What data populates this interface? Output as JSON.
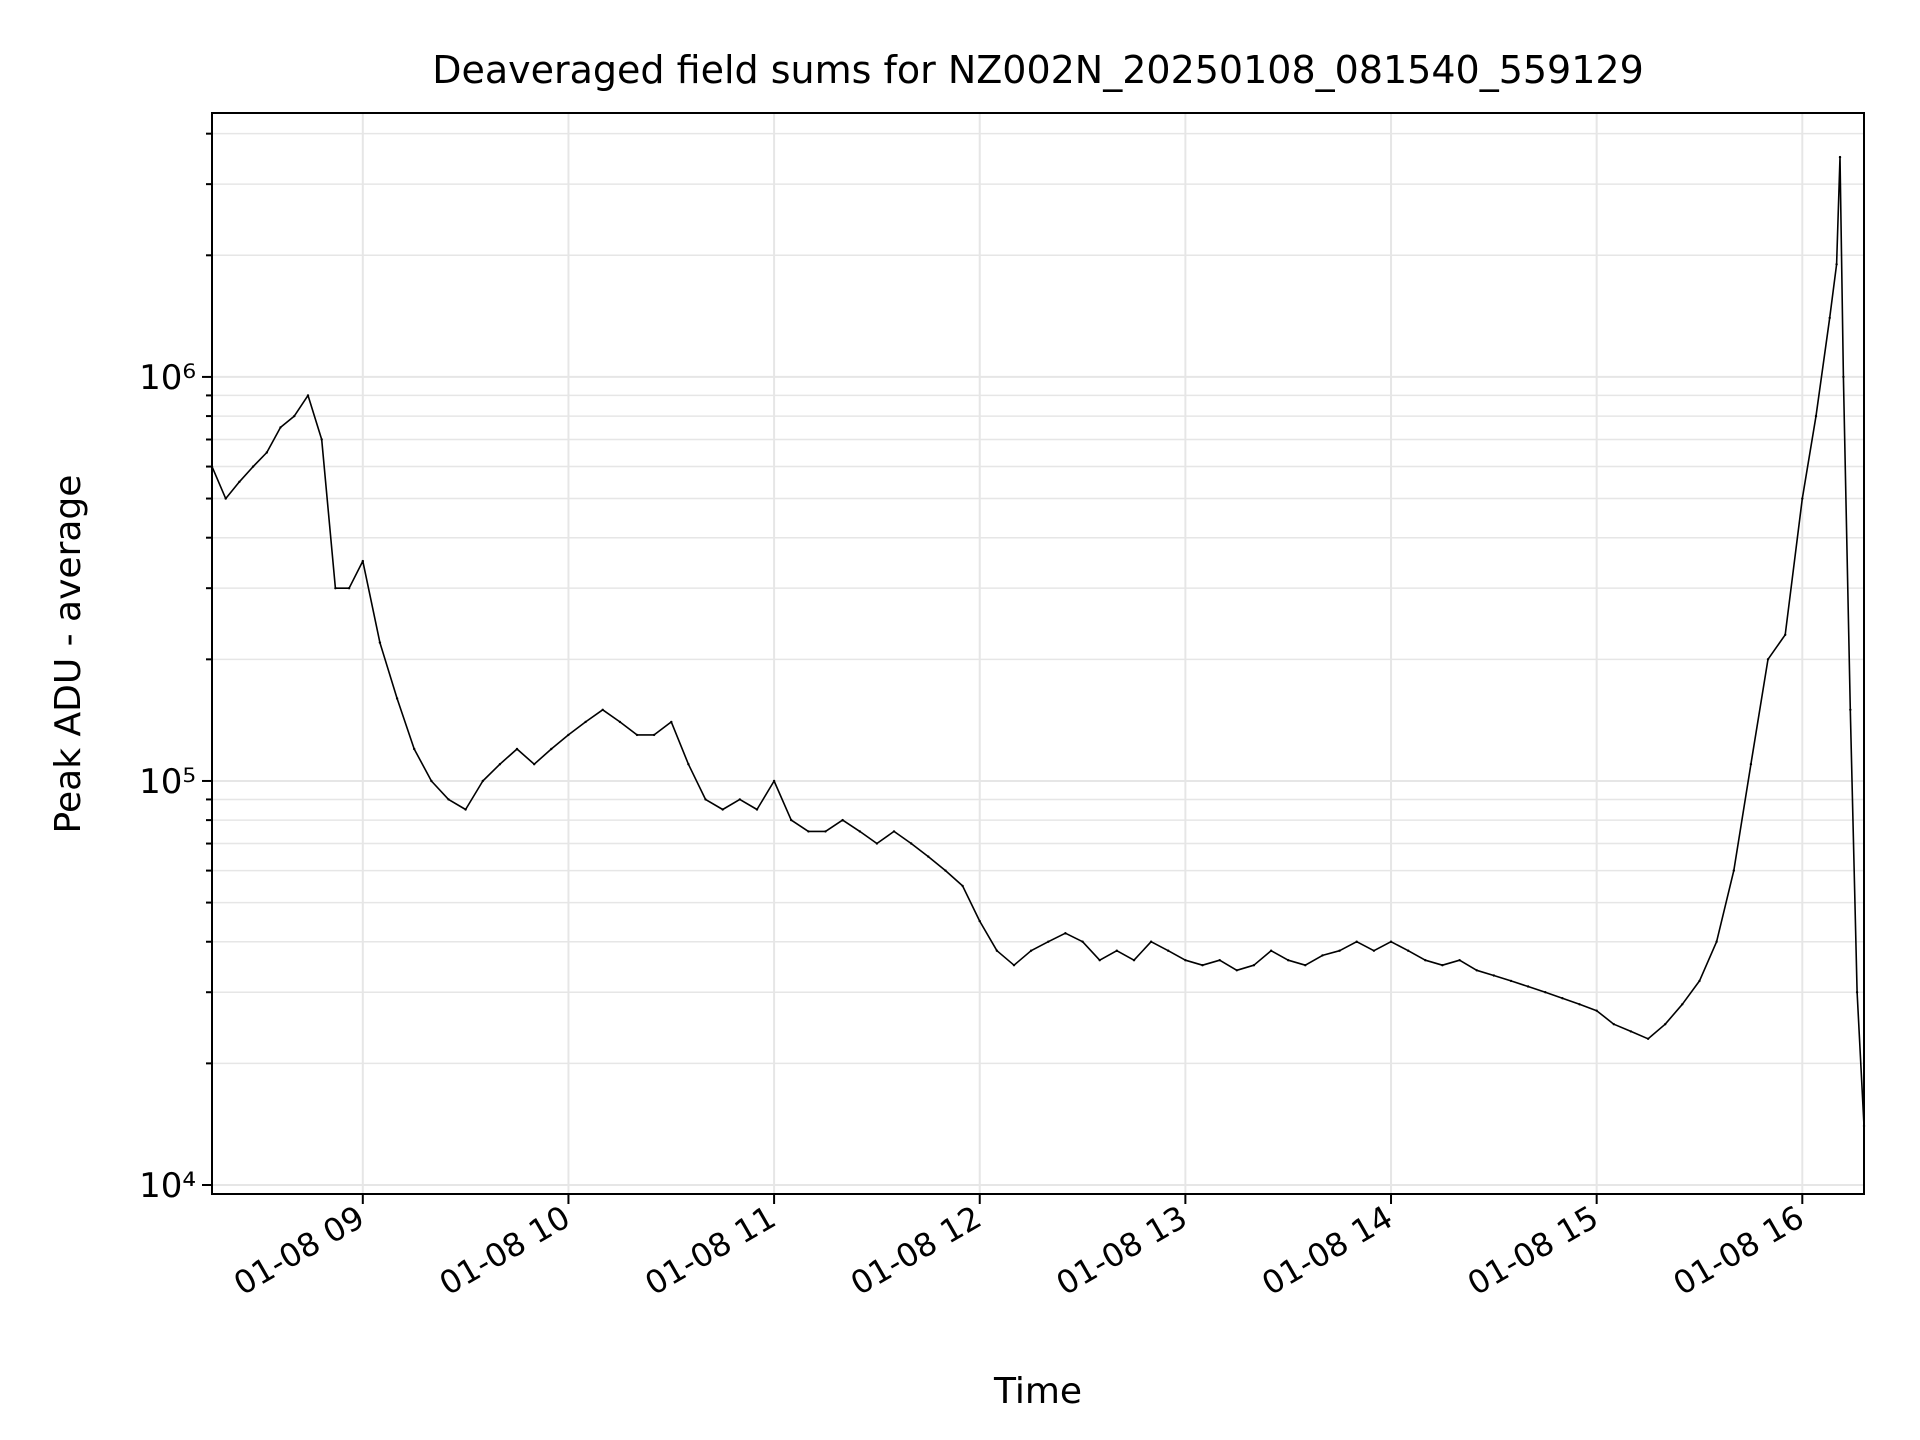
{
  "colors": {
    "line": "#000000",
    "grid": "#e6e6e6",
    "axes": "#000000",
    "background": "#ffffff"
  },
  "chart_data": {
    "type": "line",
    "title": "Deaveraged field sums for NZ002N_20250108_081540_559129",
    "xlabel": "Time",
    "ylabel": "Peak ADU - average",
    "yscale": "log",
    "ylim": [
      9500,
      4500000
    ],
    "xlim": [
      "2025-01-08T08:16:00",
      "2025-01-08T16:18:00"
    ],
    "xticks": [
      {
        "time": "2025-01-08T09:00:00",
        "label": "01-08 09"
      },
      {
        "time": "2025-01-08T10:00:00",
        "label": "01-08 10"
      },
      {
        "time": "2025-01-08T11:00:00",
        "label": "01-08 11"
      },
      {
        "time": "2025-01-08T12:00:00",
        "label": "01-08 12"
      },
      {
        "time": "2025-01-08T13:00:00",
        "label": "01-08 13"
      },
      {
        "time": "2025-01-08T14:00:00",
        "label": "01-08 14"
      },
      {
        "time": "2025-01-08T15:00:00",
        "label": "01-08 15"
      },
      {
        "time": "2025-01-08T16:00:00",
        "label": "01-08 16"
      }
    ],
    "yticks": [
      {
        "value": 10000,
        "label": "10⁴"
      },
      {
        "value": 100000,
        "label": "10⁵"
      },
      {
        "value": 1000000,
        "label": "10⁶"
      }
    ],
    "grid": true,
    "series": [
      {
        "color": "#000000",
        "points": [
          [
            "2025-01-08T08:16:00",
            600000
          ],
          [
            "2025-01-08T08:20:00",
            500000
          ],
          [
            "2025-01-08T08:24:00",
            550000
          ],
          [
            "2025-01-08T08:28:00",
            600000
          ],
          [
            "2025-01-08T08:32:00",
            650000
          ],
          [
            "2025-01-08T08:36:00",
            750000
          ],
          [
            "2025-01-08T08:40:00",
            800000
          ],
          [
            "2025-01-08T08:44:00",
            900000
          ],
          [
            "2025-01-08T08:48:00",
            700000
          ],
          [
            "2025-01-08T08:52:00",
            300000
          ],
          [
            "2025-01-08T08:56:00",
            300000
          ],
          [
            "2025-01-08T09:00:00",
            350000
          ],
          [
            "2025-01-08T09:05:00",
            220000
          ],
          [
            "2025-01-08T09:10:00",
            160000
          ],
          [
            "2025-01-08T09:15:00",
            120000
          ],
          [
            "2025-01-08T09:20:00",
            100000
          ],
          [
            "2025-01-08T09:25:00",
            90000
          ],
          [
            "2025-01-08T09:30:00",
            85000
          ],
          [
            "2025-01-08T09:35:00",
            100000
          ],
          [
            "2025-01-08T09:40:00",
            110000
          ],
          [
            "2025-01-08T09:45:00",
            120000
          ],
          [
            "2025-01-08T09:50:00",
            110000
          ],
          [
            "2025-01-08T09:55:00",
            120000
          ],
          [
            "2025-01-08T10:00:00",
            130000
          ],
          [
            "2025-01-08T10:05:00",
            140000
          ],
          [
            "2025-01-08T10:10:00",
            150000
          ],
          [
            "2025-01-08T10:15:00",
            140000
          ],
          [
            "2025-01-08T10:20:00",
            130000
          ],
          [
            "2025-01-08T10:25:00",
            130000
          ],
          [
            "2025-01-08T10:30:00",
            140000
          ],
          [
            "2025-01-08T10:35:00",
            110000
          ],
          [
            "2025-01-08T10:40:00",
            90000
          ],
          [
            "2025-01-08T10:45:00",
            85000
          ],
          [
            "2025-01-08T10:50:00",
            90000
          ],
          [
            "2025-01-08T10:55:00",
            85000
          ],
          [
            "2025-01-08T11:00:00",
            100000
          ],
          [
            "2025-01-08T11:05:00",
            80000
          ],
          [
            "2025-01-08T11:10:00",
            75000
          ],
          [
            "2025-01-08T11:15:00",
            75000
          ],
          [
            "2025-01-08T11:20:00",
            80000
          ],
          [
            "2025-01-08T11:25:00",
            75000
          ],
          [
            "2025-01-08T11:30:00",
            70000
          ],
          [
            "2025-01-08T11:35:00",
            75000
          ],
          [
            "2025-01-08T11:40:00",
            70000
          ],
          [
            "2025-01-08T11:45:00",
            65000
          ],
          [
            "2025-01-08T11:50:00",
            60000
          ],
          [
            "2025-01-08T11:55:00",
            55000
          ],
          [
            "2025-01-08T12:00:00",
            45000
          ],
          [
            "2025-01-08T12:05:00",
            38000
          ],
          [
            "2025-01-08T12:10:00",
            35000
          ],
          [
            "2025-01-08T12:15:00",
            38000
          ],
          [
            "2025-01-08T12:20:00",
            40000
          ],
          [
            "2025-01-08T12:25:00",
            42000
          ],
          [
            "2025-01-08T12:30:00",
            40000
          ],
          [
            "2025-01-08T12:35:00",
            36000
          ],
          [
            "2025-01-08T12:40:00",
            38000
          ],
          [
            "2025-01-08T12:45:00",
            36000
          ],
          [
            "2025-01-08T12:50:00",
            40000
          ],
          [
            "2025-01-08T12:55:00",
            38000
          ],
          [
            "2025-01-08T13:00:00",
            36000
          ],
          [
            "2025-01-08T13:05:00",
            35000
          ],
          [
            "2025-01-08T13:10:00",
            36000
          ],
          [
            "2025-01-08T13:15:00",
            34000
          ],
          [
            "2025-01-08T13:20:00",
            35000
          ],
          [
            "2025-01-08T13:25:00",
            38000
          ],
          [
            "2025-01-08T13:30:00",
            36000
          ],
          [
            "2025-01-08T13:35:00",
            35000
          ],
          [
            "2025-01-08T13:40:00",
            37000
          ],
          [
            "2025-01-08T13:45:00",
            38000
          ],
          [
            "2025-01-08T13:50:00",
            40000
          ],
          [
            "2025-01-08T13:55:00",
            38000
          ],
          [
            "2025-01-08T14:00:00",
            40000
          ],
          [
            "2025-01-08T14:05:00",
            38000
          ],
          [
            "2025-01-08T14:10:00",
            36000
          ],
          [
            "2025-01-08T14:15:00",
            35000
          ],
          [
            "2025-01-08T14:20:00",
            36000
          ],
          [
            "2025-01-08T14:25:00",
            34000
          ],
          [
            "2025-01-08T14:30:00",
            33000
          ],
          [
            "2025-01-08T14:35:00",
            32000
          ],
          [
            "2025-01-08T14:40:00",
            31000
          ],
          [
            "2025-01-08T14:45:00",
            30000
          ],
          [
            "2025-01-08T14:50:00",
            29000
          ],
          [
            "2025-01-08T14:55:00",
            28000
          ],
          [
            "2025-01-08T15:00:00",
            27000
          ],
          [
            "2025-01-08T15:05:00",
            25000
          ],
          [
            "2025-01-08T15:10:00",
            24000
          ],
          [
            "2025-01-08T15:15:00",
            23000
          ],
          [
            "2025-01-08T15:20:00",
            25000
          ],
          [
            "2025-01-08T15:25:00",
            28000
          ],
          [
            "2025-01-08T15:30:00",
            32000
          ],
          [
            "2025-01-08T15:35:00",
            40000
          ],
          [
            "2025-01-08T15:40:00",
            60000
          ],
          [
            "2025-01-08T15:45:00",
            110000
          ],
          [
            "2025-01-08T15:50:00",
            200000
          ],
          [
            "2025-01-08T15:55:00",
            230000
          ],
          [
            "2025-01-08T16:00:00",
            500000
          ],
          [
            "2025-01-08T16:04:00",
            800000
          ],
          [
            "2025-01-08T16:08:00",
            1400000
          ],
          [
            "2025-01-08T16:10:00",
            1900000
          ],
          [
            "2025-01-08T16:11:00",
            3500000
          ],
          [
            "2025-01-08T16:12:00",
            1000000
          ],
          [
            "2025-01-08T16:14:00",
            150000
          ],
          [
            "2025-01-08T16:16:00",
            30000
          ],
          [
            "2025-01-08T16:18:00",
            14000
          ]
        ]
      }
    ]
  }
}
